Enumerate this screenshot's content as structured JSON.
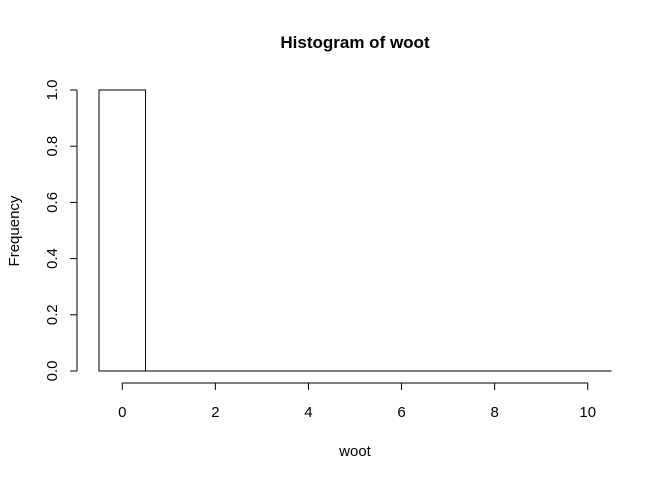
{
  "chart_data": {
    "type": "bar",
    "title": "Histogram of woot",
    "xlabel": "woot",
    "ylabel": "Frequency",
    "bins": [
      {
        "from": -0.5,
        "to": 0.5,
        "count": 1
      },
      {
        "from": 0.5,
        "to": 1.5,
        "count": 0
      },
      {
        "from": 1.5,
        "to": 2.5,
        "count": 0
      },
      {
        "from": 2.5,
        "to": 3.5,
        "count": 0
      },
      {
        "from": 3.5,
        "to": 4.5,
        "count": 0
      },
      {
        "from": 4.5,
        "to": 5.5,
        "count": 0
      },
      {
        "from": 5.5,
        "to": 6.5,
        "count": 0
      },
      {
        "from": 6.5,
        "to": 7.5,
        "count": 0
      },
      {
        "from": 7.5,
        "to": 8.5,
        "count": 0
      },
      {
        "from": 8.5,
        "to": 9.5,
        "count": 0
      },
      {
        "from": 9.5,
        "to": 10.5,
        "count": 0
      }
    ],
    "xticks": [
      0,
      2,
      4,
      6,
      8,
      10
    ],
    "yticks": [
      0.0,
      0.2,
      0.4,
      0.6,
      0.8,
      1.0
    ],
    "xtick_labels": [
      "0",
      "2",
      "4",
      "6",
      "8",
      "10"
    ],
    "ytick_labels": [
      "0.0",
      "0.2",
      "0.4",
      "0.6",
      "0.8",
      "1.0"
    ],
    "xlim": [
      -0.5,
      10.5
    ],
    "ylim": [
      0,
      1
    ],
    "grid": false,
    "colors": {
      "bar_fill": "#ffffff",
      "bar_stroke": "#000000",
      "axis": "#000000"
    }
  }
}
